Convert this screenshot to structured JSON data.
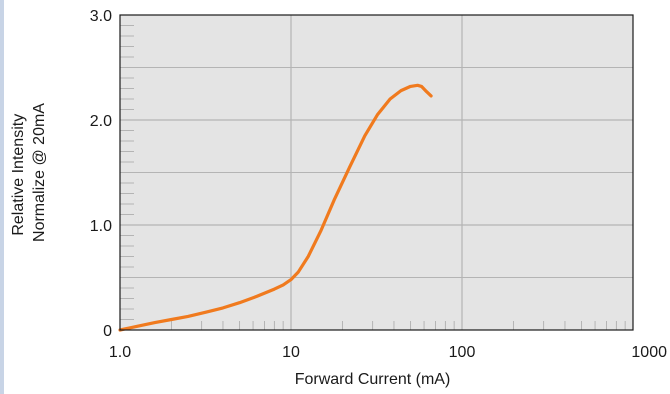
{
  "chart_data": {
    "type": "line",
    "xlabel": "Forward Current (mA)",
    "ylabel_lines": [
      "Relative Intensity",
      "Normalize @ 20mA"
    ],
    "xscale": "log",
    "xlim": [
      1,
      1000
    ],
    "ylim": [
      0,
      3
    ],
    "x_tick_labels": [
      "1.0",
      "10",
      "100",
      "1000"
    ],
    "x_ticks": [
      1,
      10,
      100,
      1000
    ],
    "y_tick_labels": [
      "0",
      "1.0",
      "2.0",
      "3.0"
    ],
    "y_ticks": [
      0,
      1,
      2,
      3
    ],
    "grid": true,
    "colors": {
      "plot_bg": "#e4e4e4",
      "grid": "#b4b4b4",
      "curve": "#f07a1e",
      "axis": "#1a1a1a"
    },
    "series": [
      {
        "x": [
          1.0,
          1.3,
          1.6,
          2.0,
          2.5,
          3.2,
          4.0,
          5.0,
          6.3,
          8.0,
          9.0,
          10.0,
          11.0,
          12.6,
          15.0,
          18.0,
          22.0,
          27.0,
          32.0,
          38.0,
          44.0,
          50.0,
          55.0,
          58.0,
          62.0,
          66.0
        ],
        "y": [
          0.0,
          0.04,
          0.07,
          0.1,
          0.13,
          0.17,
          0.21,
          0.26,
          0.32,
          0.39,
          0.43,
          0.48,
          0.55,
          0.7,
          0.95,
          1.25,
          1.55,
          1.85,
          2.05,
          2.2,
          2.28,
          2.32,
          2.33,
          2.32,
          2.27,
          2.23
        ]
      }
    ]
  }
}
